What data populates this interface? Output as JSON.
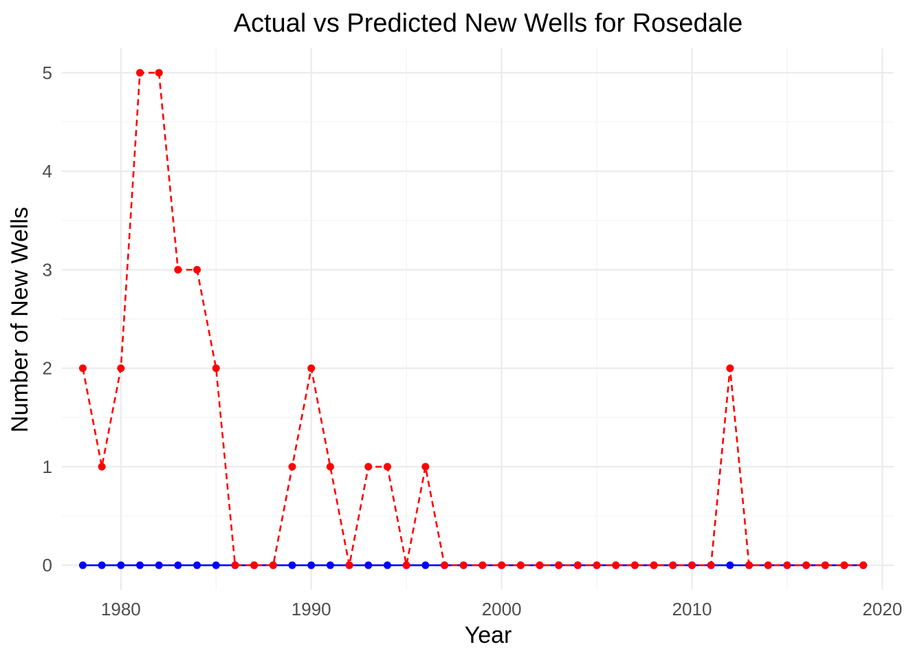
{
  "chart_data": {
    "type": "line",
    "title": "Actual vs Predicted New Wells for Rosedale",
    "xlabel": "Year",
    "ylabel": "Number of New Wells",
    "xlim": [
      1976.9,
      2020.6
    ],
    "ylim": [
      -0.25,
      5.25
    ],
    "x_ticks": [
      1980,
      1990,
      2000,
      2010,
      2020
    ],
    "y_ticks": [
      0,
      1,
      2,
      3,
      4,
      5
    ],
    "grid": true,
    "legend": "none",
    "x": [
      1978,
      1979,
      1980,
      1981,
      1982,
      1983,
      1984,
      1985,
      1986,
      1987,
      1988,
      1989,
      1990,
      1991,
      1992,
      1993,
      1994,
      1995,
      1996,
      1997,
      1998,
      1999,
      2000,
      2001,
      2002,
      2003,
      2004,
      2005,
      2006,
      2007,
      2008,
      2009,
      2010,
      2011,
      2012,
      2013,
      2014,
      2015,
      2016,
      2017,
      2018,
      2019
    ],
    "series": [
      {
        "color": "#0000ff",
        "line_style": "solid",
        "values": [
          0,
          0,
          0,
          0,
          0,
          0,
          0,
          0,
          0,
          0,
          0,
          0,
          0,
          0,
          0,
          0,
          0,
          0,
          0,
          0,
          0,
          0,
          0,
          0,
          0,
          0,
          0,
          0,
          0,
          0,
          0,
          0,
          0,
          0,
          0,
          0,
          0,
          0,
          0,
          0,
          0,
          0
        ]
      },
      {
        "color": "#ff0000",
        "line_style": "dashed",
        "values": [
          2,
          1,
          2,
          5,
          5,
          3,
          3,
          2,
          0,
          0,
          0,
          1,
          2,
          1,
          0,
          1,
          1,
          0,
          1,
          0,
          0,
          0,
          0,
          0,
          0,
          0,
          0,
          0,
          0,
          0,
          0,
          0,
          0,
          0,
          2,
          0,
          0,
          0,
          0,
          0,
          0,
          0
        ]
      }
    ]
  }
}
